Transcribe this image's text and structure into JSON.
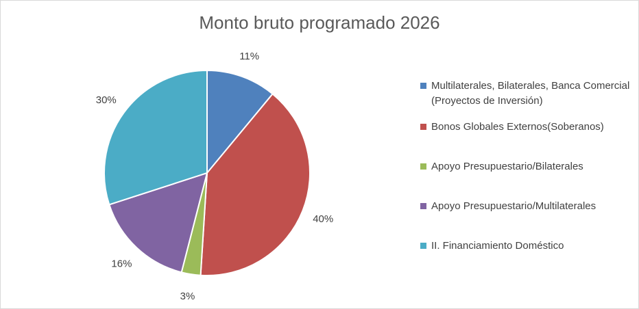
{
  "chart_data": {
    "type": "pie",
    "title": "Monto bruto programado 2026",
    "legend_position": "right",
    "categories": [
      "Multilaterales, Bilaterales, Banca Comercial (Proyectos de Inversión)",
      "Bonos Globales Externos(Soberanos)",
      "Apoyo Presupuestario/Bilaterales",
      "Apoyo Presupuestario/Multilaterales",
      "II. Financiamiento Doméstico"
    ],
    "values": [
      11,
      40,
      3,
      16,
      30
    ],
    "labels": [
      "11%",
      "40%",
      "3%",
      "16%",
      "30%"
    ],
    "colors": [
      "#4F81BD",
      "#C0504D",
      "#9BBB59",
      "#8064A2",
      "#4BACC6"
    ]
  }
}
